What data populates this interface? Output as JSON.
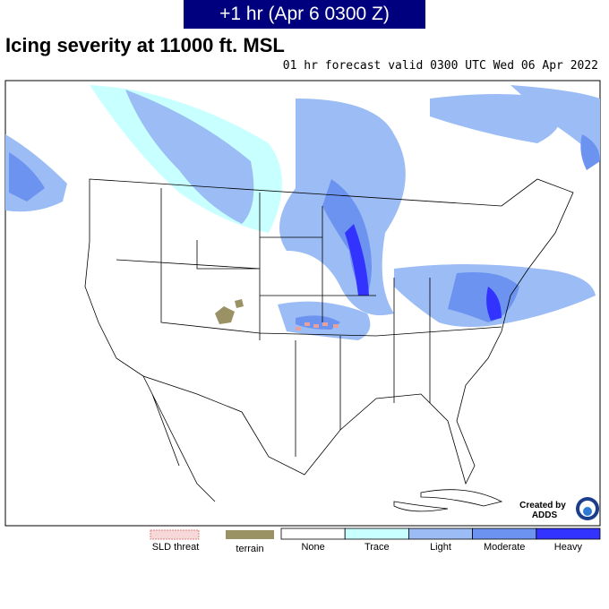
{
  "header": {
    "time_label": "+1 hr (Apr 6 0300 Z)"
  },
  "title": "Icing severity at 11000 ft. MSL",
  "subtitle": "01 hr forecast valid 0300 UTC Wed 06 Apr 2022",
  "legend": {
    "sld": "SLD threat",
    "terrain": "terrain",
    "levels": [
      "None",
      "Trace",
      "Light",
      "Moderate",
      "Heavy"
    ]
  },
  "logo": {
    "line1": "Created by",
    "line2": "ADDS"
  }
}
